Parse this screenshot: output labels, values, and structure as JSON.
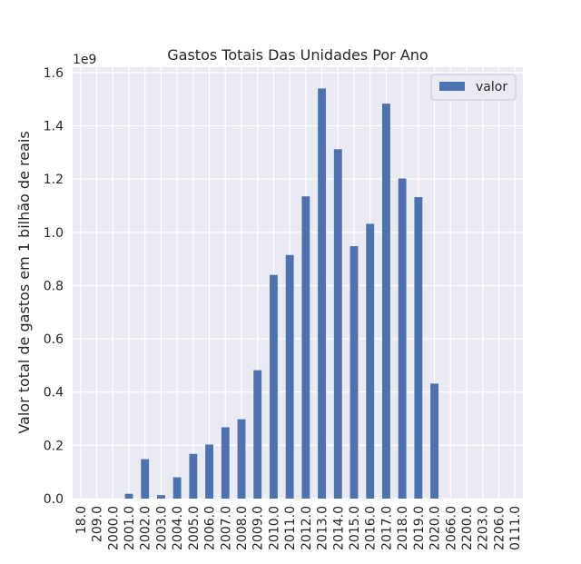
{
  "chart_data": {
    "type": "bar",
    "title": "Gastos Totais Das Unidades Por Ano",
    "xlabel": "",
    "ylabel": "Valor total de gastos em 1 bilhão de reais",
    "offset_label": "1e9",
    "ylim": [
      0,
      1.62
    ],
    "yticks": [
      "0.0",
      "0.2",
      "0.4",
      "0.6",
      "0.8",
      "1.0",
      "1.2",
      "1.4",
      "1.6"
    ],
    "ytick_values": [
      0,
      0.2,
      0.4,
      0.6,
      0.8,
      1.0,
      1.2,
      1.4,
      1.6
    ],
    "categories": [
      "18.0",
      "209.0",
      "2000.0",
      "2001.0",
      "2002.0",
      "2003.0",
      "2004.0",
      "2005.0",
      "2006.0",
      "2007.0",
      "2008.0",
      "2009.0",
      "2010.0",
      "2011.0",
      "2012.0",
      "2013.0",
      "2014.0",
      "2015.0",
      "2016.0",
      "2017.0",
      "2018.0",
      "2019.0",
      "2020.0",
      "2066.0",
      "2200.0",
      "2203.0",
      "2206.0",
      "0111.0"
    ],
    "series": [
      {
        "name": "valor",
        "color": "#4c72b0",
        "values": [
          0,
          0,
          0,
          0.018,
          0.148,
          0.013,
          0.08,
          0.168,
          0.203,
          0.268,
          0.298,
          0.482,
          0.84,
          0.915,
          1.135,
          1.54,
          1.312,
          0.948,
          1.032,
          1.483,
          1.202,
          1.132,
          0.432,
          0,
          0,
          0,
          0,
          0
        ]
      }
    ],
    "legend": {
      "position": "top-right"
    },
    "grid": true
  }
}
